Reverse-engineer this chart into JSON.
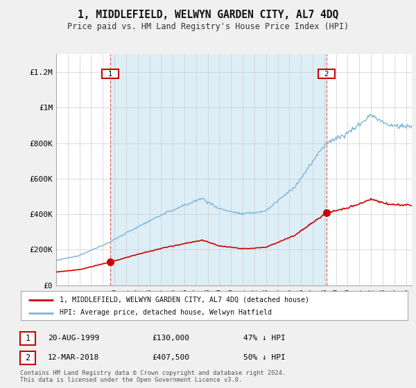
{
  "title": "1, MIDDLEFIELD, WELWYN GARDEN CITY, AL7 4DQ",
  "subtitle": "Price paid vs. HM Land Registry's House Price Index (HPI)",
  "ylabel_ticks": [
    "£0",
    "£200K",
    "£400K",
    "£600K",
    "£800K",
    "£1M",
    "£1.2M"
  ],
  "ytick_values": [
    0,
    200000,
    400000,
    600000,
    800000,
    1000000,
    1200000
  ],
  "ylim": [
    0,
    1300000
  ],
  "xlim_start": 1995.0,
  "xlim_end": 2025.5,
  "hpi_color": "#7ab4d8",
  "hpi_bg_color": "#ddeef7",
  "price_color": "#cc0000",
  "vline_color": "#dd4444",
  "sale1_x": 1999.64,
  "sale1_y": 130000,
  "sale2_x": 2018.19,
  "sale2_y": 407500,
  "legend_line1": "1, MIDDLEFIELD, WELWYN GARDEN CITY, AL7 4DQ (detached house)",
  "legend_line2": "HPI: Average price, detached house, Welwyn Hatfield",
  "annotation1_date": "20-AUG-1999",
  "annotation1_price": "£130,000",
  "annotation1_hpi": "47% ↓ HPI",
  "annotation2_date": "12-MAR-2018",
  "annotation2_price": "£407,500",
  "annotation2_hpi": "50% ↓ HPI",
  "footer": "Contains HM Land Registry data © Crown copyright and database right 2024.\nThis data is licensed under the Open Government Licence v3.0.",
  "background_color": "#f0f0f0",
  "plot_bg_color": "#ffffff"
}
